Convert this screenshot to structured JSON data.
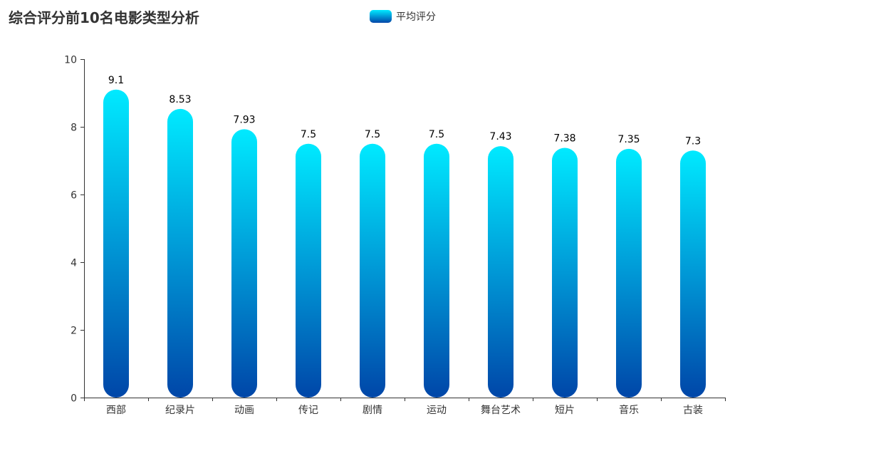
{
  "chart_data": {
    "type": "bar",
    "title": "综合评分前10名电影类型分析",
    "categories": [
      "西部",
      "纪录片",
      "动画",
      "传记",
      "剧情",
      "运动",
      "舞台艺术",
      "短片",
      "音乐",
      "古装"
    ],
    "series": [
      {
        "name": "平均评分",
        "values": [
          9.1,
          8.53,
          7.93,
          7.5,
          7.5,
          7.5,
          7.43,
          7.38,
          7.35,
          7.3
        ],
        "gradient": [
          "#00eaff",
          "#0046a8"
        ]
      }
    ],
    "data_labels": [
      "9.1",
      "8.53",
      "7.93",
      "7.5",
      "7.5",
      "7.5",
      "7.43",
      "7.38",
      "7.35",
      "7.3"
    ],
    "ylim": [
      0,
      10
    ],
    "yticks": [
      "0",
      "2",
      "4",
      "6",
      "8",
      "10"
    ],
    "grid": false,
    "legend_position": "top-center",
    "axis_color": "#333333"
  }
}
